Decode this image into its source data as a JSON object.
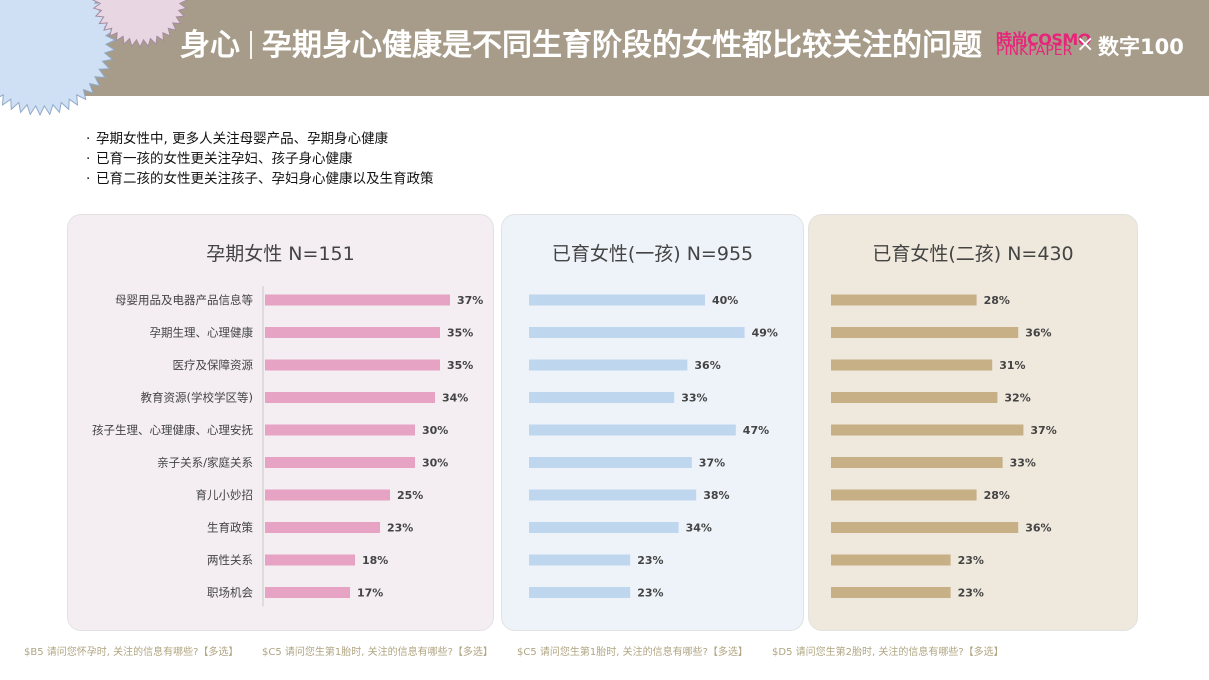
{
  "header": {
    "title_prefix": "身心",
    "title": "孕期身心健康是不同生育阶段的女性都比较关注的问题",
    "brand_line1": "時尚COSMO",
    "brand_line2": "PINKPAPER",
    "brand_x": "×",
    "brand_partner": "数字100"
  },
  "bullets": [
    "孕期女性中, 更多人关注母婴产品、孕期身心健康",
    "已育一孩的女性更关注孕妇、孩子身心健康",
    "已育二孩的女性更关注孩子、孕妇身心健康以及生育政策"
  ],
  "colors": {
    "header_bg": "#a79c89",
    "panel1_bg": "#f4eef2",
    "panel2_bg": "#eef3fa",
    "panel3_bg": "#efe8dc",
    "bar1": "#e6a3c4",
    "bar2": "#bfd6ef",
    "bar3": "#c7af86",
    "footnote": "#b0a582"
  },
  "chart_data": [
    {
      "type": "bar",
      "orientation": "horizontal",
      "title": "孕期女性 N=151",
      "categories": [
        "母婴用品及电器产品信息等",
        "孕期生理、心理健康",
        "医疗及保障资源",
        "教育资源(学校学区等)",
        "孩子生理、心理健康、心理安抚",
        "亲子关系/家庭关系",
        "育儿小妙招",
        "生育政策",
        "两性关系",
        "职场机会"
      ],
      "values": [
        37,
        35,
        35,
        34,
        30,
        30,
        25,
        23,
        18,
        17
      ],
      "value_labels": [
        "37%",
        "35%",
        "35%",
        "34%",
        "30%",
        "30%",
        "25%",
        "23%",
        "18%",
        "17%"
      ],
      "unit": "%"
    },
    {
      "type": "bar",
      "orientation": "horizontal",
      "title": "已育女性(一孩) N=955",
      "categories": [
        "母婴用品及电器产品信息等",
        "孕期生理、心理健康",
        "医疗及保障资源",
        "教育资源(学校学区等)",
        "孩子生理、心理健康、心理安抚",
        "亲子关系/家庭关系",
        "育儿小妙招",
        "生育政策",
        "两性关系",
        "职场机会"
      ],
      "values": [
        40,
        49,
        36,
        33,
        47,
        37,
        38,
        34,
        23,
        23
      ],
      "value_labels": [
        "40%",
        "49%",
        "36%",
        "33%",
        "47%",
        "37%",
        "38%",
        "34%",
        "23%",
        "23%"
      ],
      "unit": "%"
    },
    {
      "type": "bar",
      "orientation": "horizontal",
      "title": "已育女性(二孩) N=430",
      "categories": [
        "母婴用品及电器产品信息等",
        "孕期生理、心理健康",
        "医疗及保障资源",
        "教育资源(学校学区等)",
        "孩子生理、心理健康、心理安抚",
        "亲子关系/家庭关系",
        "育儿小妙招",
        "生育政策",
        "两性关系",
        "职场机会"
      ],
      "values": [
        28,
        36,
        31,
        32,
        37,
        33,
        28,
        36,
        23,
        23
      ],
      "value_labels": [
        "28%",
        "36%",
        "31%",
        "32%",
        "37%",
        "33%",
        "28%",
        "36%",
        "23%",
        "23%"
      ],
      "unit": "%"
    }
  ],
  "footnotes": [
    "$B5 请问您怀孕时, 关注的信息有哪些?【多选】",
    "$C5 请问您生第1胎时, 关注的信息有哪些?【多选】",
    "$C5 请问您生第1胎时, 关注的信息有哪些?【多选】",
    "$D5 请问您生第2胎时, 关注的信息有哪些?【多选】"
  ]
}
